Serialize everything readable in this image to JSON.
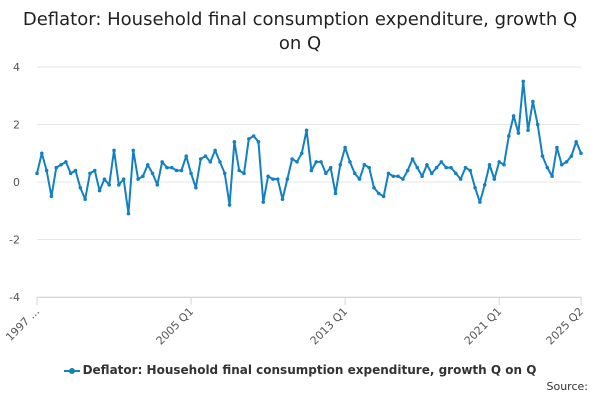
{
  "chart_data": {
    "type": "line",
    "title": "Deflator: Household final consumption expenditure, growth Q on Q",
    "xlabel": "",
    "ylabel": "",
    "ylim": [
      -4,
      4
    ],
    "yticks": [
      -4,
      -2,
      0,
      2,
      4
    ],
    "xticks": [
      "1997 ...",
      "2005 Q1",
      "2013 Q1",
      "2021 Q1",
      "2025 Q2"
    ],
    "grid": true,
    "legend_position": "bottom",
    "series": [
      {
        "name": "Deflator: Household final consumption expenditure, growth Q on Q",
        "color": "#1380c2",
        "x": [
          "1997 Q1",
          "1997 Q2",
          "1997 Q3",
          "1997 Q4",
          "1998 Q1",
          "1998 Q2",
          "1998 Q3",
          "1998 Q4",
          "1999 Q1",
          "1999 Q2",
          "1999 Q3",
          "1999 Q4",
          "2000 Q1",
          "2000 Q2",
          "2000 Q3",
          "2000 Q4",
          "2001 Q1",
          "2001 Q2",
          "2001 Q3",
          "2001 Q4",
          "2002 Q1",
          "2002 Q2",
          "2002 Q3",
          "2002 Q4",
          "2003 Q1",
          "2003 Q2",
          "2003 Q3",
          "2003 Q4",
          "2004 Q1",
          "2004 Q2",
          "2004 Q3",
          "2004 Q4",
          "2005 Q1",
          "2005 Q2",
          "2005 Q3",
          "2005 Q4",
          "2006 Q1",
          "2006 Q2",
          "2006 Q3",
          "2006 Q4",
          "2007 Q1",
          "2007 Q2",
          "2007 Q3",
          "2007 Q4",
          "2008 Q1",
          "2008 Q2",
          "2008 Q3",
          "2008 Q4",
          "2009 Q1",
          "2009 Q2",
          "2009 Q3",
          "2009 Q4",
          "2010 Q1",
          "2010 Q2",
          "2010 Q3",
          "2010 Q4",
          "2011 Q1",
          "2011 Q2",
          "2011 Q3",
          "2011 Q4",
          "2012 Q1",
          "2012 Q2",
          "2012 Q3",
          "2012 Q4",
          "2013 Q1",
          "2013 Q2",
          "2013 Q3",
          "2013 Q4",
          "2014 Q1",
          "2014 Q2",
          "2014 Q3",
          "2014 Q4",
          "2015 Q1",
          "2015 Q2",
          "2015 Q3",
          "2015 Q4",
          "2016 Q1",
          "2016 Q2",
          "2016 Q3",
          "2016 Q4",
          "2017 Q1",
          "2017 Q2",
          "2017 Q3",
          "2017 Q4",
          "2018 Q1",
          "2018 Q2",
          "2018 Q3",
          "2018 Q4",
          "2019 Q1",
          "2019 Q2",
          "2019 Q3",
          "2019 Q4",
          "2020 Q1",
          "2020 Q2",
          "2020 Q3",
          "2020 Q4",
          "2021 Q1",
          "2021 Q2",
          "2021 Q3",
          "2021 Q4",
          "2022 Q1",
          "2022 Q2",
          "2022 Q3",
          "2022 Q4",
          "2023 Q1",
          "2023 Q2",
          "2023 Q3",
          "2023 Q4",
          "2024 Q1",
          "2024 Q2",
          "2024 Q3",
          "2024 Q4",
          "2025 Q1",
          "2025 Q2"
        ],
        "values": [
          0.3,
          1.0,
          0.4,
          -0.5,
          0.5,
          0.6,
          0.7,
          0.3,
          0.4,
          -0.2,
          -0.6,
          0.3,
          0.4,
          -0.3,
          0.1,
          -0.1,
          1.1,
          -0.1,
          0.1,
          -1.1,
          1.1,
          0.1,
          0.2,
          0.6,
          0.3,
          -0.1,
          0.7,
          0.5,
          0.5,
          0.4,
          0.4,
          0.9,
          0.3,
          -0.2,
          0.8,
          0.9,
          0.7,
          1.1,
          0.7,
          0.3,
          -0.8,
          1.4,
          0.4,
          0.3,
          1.5,
          1.6,
          1.4,
          -0.7,
          0.2,
          0.1,
          0.1,
          -0.6,
          0.1,
          0.8,
          0.7,
          1.0,
          1.8,
          0.4,
          0.7,
          0.7,
          0.3,
          0.5,
          -0.4,
          0.6,
          1.2,
          0.7,
          0.3,
          0.1,
          0.6,
          0.5,
          -0.2,
          -0.4,
          -0.5,
          0.3,
          0.2,
          0.2,
          0.1,
          0.4,
          0.8,
          0.5,
          0.2,
          0.6,
          0.3,
          0.5,
          0.7,
          0.5,
          0.5,
          0.3,
          0.1,
          0.5,
          0.4,
          -0.2,
          -0.7,
          -0.1,
          0.6,
          0.1,
          0.7,
          0.6,
          1.6,
          2.3,
          1.7,
          3.5,
          1.8,
          2.8,
          2.0,
          0.9,
          0.5,
          0.2,
          1.2,
          0.6,
          0.7,
          0.9,
          1.4,
          1.0
        ]
      }
    ]
  },
  "legend": {
    "label": "Deflator: Household final consumption expenditure, growth Q on Q"
  },
  "source": {
    "label": "Source:"
  }
}
